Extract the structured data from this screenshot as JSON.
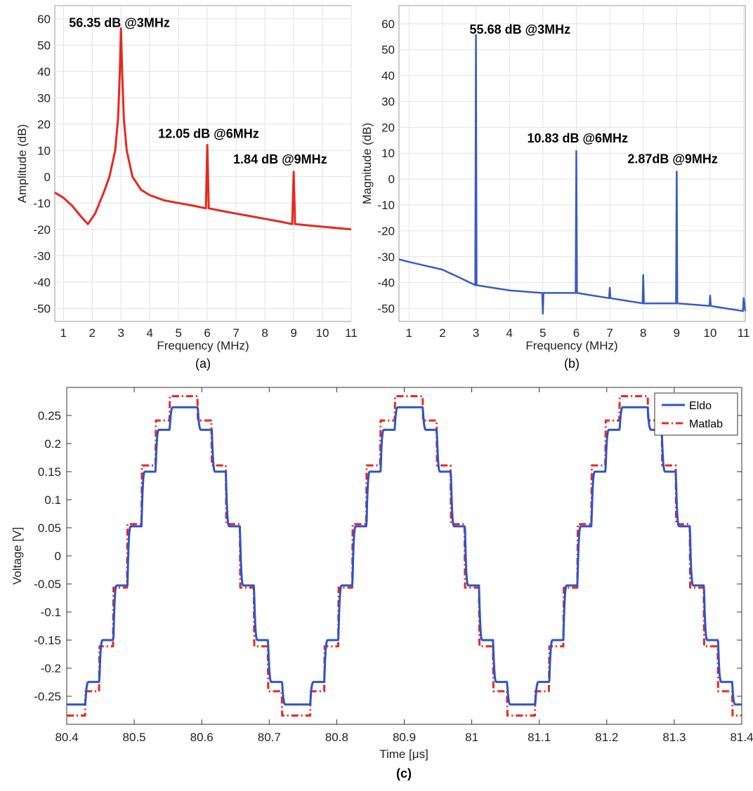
{
  "chart_data": [
    {
      "id": "a",
      "type": "line",
      "caption": "(a)",
      "xlabel": "Frequency (MHz)",
      "ylabel": "Amplitude (dB)",
      "xlim": [
        0.7,
        11
      ],
      "ylim": [
        -55,
        65
      ],
      "xticks": [
        1,
        2,
        3,
        4,
        5,
        6,
        7,
        8,
        9,
        10,
        11
      ],
      "yticks": [
        60,
        50,
        40,
        30,
        20,
        10,
        0,
        -10,
        -20,
        -30,
        -40,
        -50
      ],
      "grid": true,
      "color": "#e8281e",
      "series": [
        {
          "x": [
            0.7,
            1.0,
            1.3,
            1.6,
            1.85,
            2.1,
            2.4,
            2.6,
            2.8,
            2.9,
            2.96,
            3.0,
            3.04,
            3.1,
            3.2,
            3.4,
            3.7,
            4.0,
            4.5,
            5.0,
            5.5,
            5.95,
            6.0,
            6.05,
            6.5,
            7.0,
            7.5,
            8.0,
            8.5,
            8.95,
            9.0,
            9.05,
            9.5,
            10.0,
            10.5,
            11.0
          ],
          "y": [
            -6,
            -8,
            -11,
            -15,
            -18,
            -14,
            -6,
            0,
            10,
            22,
            40,
            56.35,
            40,
            22,
            10,
            0,
            -5,
            -7,
            -9,
            -10,
            -11,
            -12,
            12.05,
            -12,
            -13,
            -14,
            -15,
            -16,
            -17,
            -18,
            1.84,
            -18,
            -18.5,
            -19,
            -19.5,
            -20
          ]
        }
      ],
      "annotations": [
        {
          "text": "56.35 dB @3MHz",
          "x": 3,
          "y": 56.35
        },
        {
          "text": "12.05 dB @6MHz",
          "x": 6,
          "y": 12.05
        },
        {
          "text": "1.84 dB @9MHz",
          "x": 9,
          "y": 1.84
        }
      ]
    },
    {
      "id": "b",
      "type": "line",
      "caption": "(b)",
      "xlabel": "Frequency (MHz)",
      "ylabel": "Magnitude (dB)",
      "xlim": [
        0.7,
        11.05
      ],
      "ylim": [
        -55,
        67
      ],
      "xticks": [
        1,
        2,
        3,
        4,
        5,
        6,
        7,
        8,
        9,
        10,
        11
      ],
      "yticks": [
        60,
        50,
        40,
        30,
        20,
        10,
        0,
        -10,
        -20,
        -30,
        -40,
        -50
      ],
      "grid": true,
      "color": "#3a5bc0",
      "series": [
        {
          "x": [
            0.7,
            1.0,
            1.5,
            2.0,
            2.5,
            2.98,
            3.0,
            3.02,
            3.5,
            4.0,
            4.5,
            4.98,
            5.0,
            5.02,
            5.5,
            5.98,
            6.0,
            6.02,
            6.5,
            6.98,
            7.0,
            7.02,
            7.5,
            7.98,
            8.0,
            8.02,
            8.5,
            8.98,
            9.0,
            9.02,
            9.5,
            9.98,
            10.0,
            10.02,
            10.5,
            10.98,
            11.0,
            11.05
          ],
          "y": [
            -31,
            -32,
            -33.5,
            -35,
            -38,
            -41,
            55.68,
            -41,
            -42,
            -43,
            -43.5,
            -44,
            -52,
            -44,
            -44,
            -44,
            10.83,
            -44,
            -45,
            -46,
            -42,
            -46,
            -47,
            -48,
            -37,
            -48,
            -48,
            -48,
            2.87,
            -48,
            -48.5,
            -49,
            -45,
            -49,
            -50,
            -51,
            -46,
            -51
          ]
        }
      ],
      "annotations": [
        {
          "text": "55.68 dB @3MHz",
          "x": 3,
          "y": 55.68
        },
        {
          "text": "10.83 dB @6MHz",
          "x": 6,
          "y": 10.83
        },
        {
          "text": "2.87dB @9MHz",
          "x": 9,
          "y": 2.87
        }
      ]
    },
    {
      "id": "c",
      "type": "line",
      "caption": "(c)",
      "xlabel": "Time [μs]",
      "ylabel": "Voltage [V]",
      "xlim": [
        80.4,
        81.4
      ],
      "ylim": [
        -0.3,
        0.3
      ],
      "xticks": [
        80.4,
        80.5,
        80.6,
        80.7,
        80.8,
        80.9,
        81,
        81.1,
        81.2,
        81.3,
        81.4
      ],
      "xticklabels": [
        "80.4",
        "80.5",
        "80.6",
        "80.7",
        "80.8",
        "80.9",
        "81",
        "81.1",
        "81.2",
        "81.3",
        "81.4"
      ],
      "yticks": [
        0.25,
        0.2,
        0.15,
        0.1,
        0.05,
        0,
        -0.05,
        -0.1,
        -0.15,
        -0.2,
        -0.25
      ],
      "yticklabels": [
        "0.25",
        "0.2",
        "0.15",
        "0.1",
        "0.05",
        "0",
        "-0.05",
        "-0.1",
        "-0.15",
        "-0.2",
        "-0.25"
      ],
      "grid": false,
      "signal": {
        "period_us": 0.3333,
        "phase_us": 80.49,
        "steps_per_period": 16
      },
      "series": [
        {
          "name": "Eldo",
          "color": "#2e54c8",
          "style": "solid",
          "amplitude": 0.27
        },
        {
          "name": "Matlab",
          "color": "#e8281e",
          "style": "dashdot",
          "amplitude": 0.29
        }
      ],
      "legend": "top-right"
    }
  ]
}
